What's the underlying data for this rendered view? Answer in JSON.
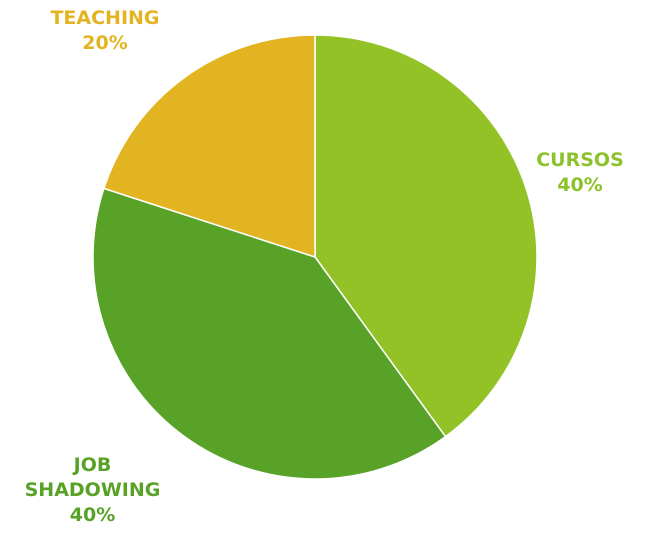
{
  "chart_data": {
    "type": "pie",
    "title": "",
    "categories": [
      "CURSOS",
      "JOB SHADOWING",
      "TEACHING"
    ],
    "values": [
      40,
      40,
      20
    ],
    "percent_labels": [
      "40%",
      "40%",
      "20%"
    ],
    "label_lines": {
      "cursos": [
        "CURSOS",
        "40%"
      ],
      "job": [
        "JOB",
        "SHADOWING",
        "40%"
      ],
      "teaching": [
        "TEACHING",
        "20%"
      ]
    },
    "colors": [
      "#93c227",
      "#57a227",
      "#e3b421"
    ],
    "label_colors": [
      "#8cc22b",
      "#57a227",
      "#e3b421"
    ],
    "start": "12 o'clock",
    "direction": "clockwise",
    "legend": "none"
  }
}
